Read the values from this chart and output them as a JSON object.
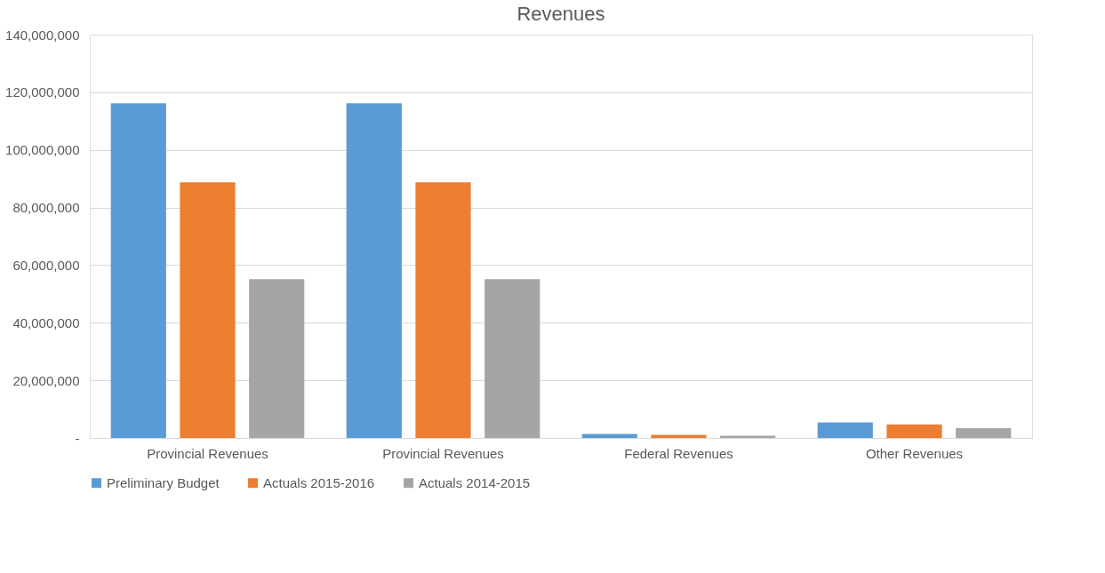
{
  "chart_data": {
    "type": "bar",
    "title": "Revenues",
    "categories": [
      "Provincial Revenues",
      "Provincial Revenues",
      "Federal Revenues",
      "Other Revenues"
    ],
    "series": [
      {
        "name": "Preliminary Budget",
        "color": "#5b9bd5",
        "values": [
          116200000,
          116200000,
          1400000,
          5400000
        ]
      },
      {
        "name": "Actuals 2015-2016",
        "color": "#ed7d31",
        "values": [
          88700000,
          88700000,
          1100000,
          4700000
        ]
      },
      {
        "name": "Actuals 2014-2015",
        "color": "#a5a5a5",
        "values": [
          55100000,
          55100000,
          800000,
          3400000
        ]
      }
    ],
    "ylim": [
      0,
      140000000
    ],
    "yticks": [
      {
        "value": 0,
        "label": "-"
      },
      {
        "value": 20000000,
        "label": "20,000,000"
      },
      {
        "value": 40000000,
        "label": "40,000,000"
      },
      {
        "value": 60000000,
        "label": "60,000,000"
      },
      {
        "value": 80000000,
        "label": "80,000,000"
      },
      {
        "value": 100000000,
        "label": "100,000,000"
      },
      {
        "value": 120000000,
        "label": "120,000,000"
      },
      {
        "value": 140000000,
        "label": "140,000,000"
      }
    ],
    "grid": "y",
    "legend": "bottom"
  }
}
